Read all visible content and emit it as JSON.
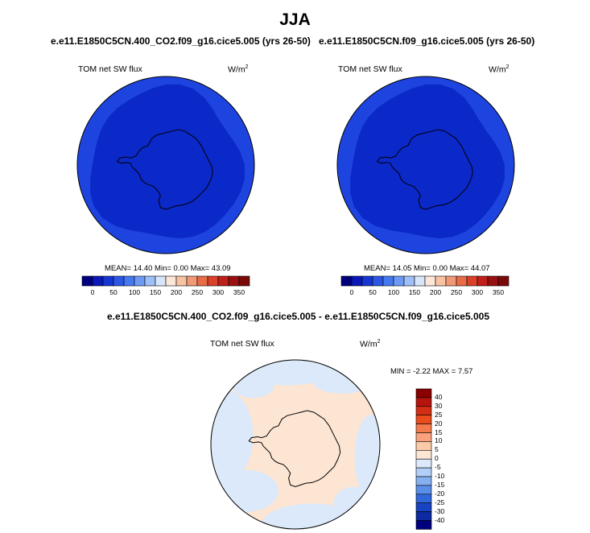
{
  "season_title": "JJA",
  "panels": [
    {
      "case": "e.e11.E1850C5CN.400_CO2.f09_g16.cice5.005 (yrs 26-50)",
      "variable": "TOM net SW flux",
      "units": "W/m",
      "units_exp": "2",
      "stats": "MEAN=  14.40  Min=   0.00  Max=  43.09",
      "colorbar_ticks": [
        "0",
        "50",
        "100",
        "150",
        "200",
        "250",
        "300",
        "350"
      ]
    },
    {
      "case": "e.e11.E1850C5CN.f09_g16.cice5.005 (yrs 26-50)",
      "variable": "TOM net SW flux",
      "units": "W/m",
      "units_exp": "2",
      "stats": "MEAN=  14.05  Min=   0.00  Max=  44.07",
      "colorbar_ticks": [
        "0",
        "50",
        "100",
        "150",
        "200",
        "250",
        "300",
        "350"
      ]
    }
  ],
  "diff": {
    "title": "e.e11.E1850C5CN.400_CO2.f09_g16.cice5.005 - e.e11.E1850C5CN.f09_g16.cice5.005",
    "variable": "TOM net SW flux",
    "units": "W/m",
    "units_exp": "2",
    "stats": "MIN =  -2.22 MAX =   7.57",
    "colorbar_ticks": [
      "40",
      "30",
      "25",
      "20",
      "15",
      "10",
      "5",
      "0",
      "-5",
      "-10",
      "-15",
      "-20",
      "-25",
      "-30",
      "-40"
    ]
  },
  "colors": {
    "abs_scale": [
      "#00007f",
      "#0a18b8",
      "#1636d2",
      "#2c57e4",
      "#4678ef",
      "#6d9af4",
      "#9fbff8",
      "#d7e6fb",
      "#fde7d8",
      "#f8c2a4",
      "#f19976",
      "#e86c48",
      "#d9412a",
      "#c0201a",
      "#991010",
      "#7a0a0a"
    ],
    "diff_scale": [
      "#8b0000",
      "#b5140e",
      "#d32f15",
      "#ea4c1e",
      "#f47a4e",
      "#f9a27d",
      "#fdcaa9",
      "#fde5d3",
      "#dbe9fa",
      "#b2d0f7",
      "#86b1f1",
      "#5a8ee9",
      "#3068dc",
      "#1844c2",
      "#0e2aa0",
      "#00007f"
    ],
    "sea_ice_outer": "#1e44e0",
    "sea_ice_inner": "#0b28c8",
    "diff_background": "#fde5d3",
    "diff_negative": "#dbe9fa"
  }
}
